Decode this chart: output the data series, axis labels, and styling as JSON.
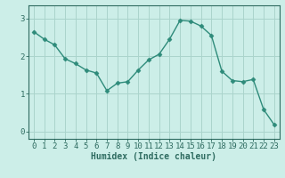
{
  "x": [
    0,
    1,
    2,
    3,
    4,
    5,
    6,
    7,
    8,
    9,
    10,
    11,
    12,
    13,
    14,
    15,
    16,
    17,
    18,
    19,
    20,
    21,
    22,
    23
  ],
  "y": [
    2.65,
    2.45,
    2.3,
    1.93,
    1.8,
    1.63,
    1.55,
    1.08,
    1.28,
    1.32,
    1.63,
    1.9,
    2.05,
    2.45,
    2.95,
    2.93,
    2.8,
    2.55,
    1.6,
    1.35,
    1.32,
    1.38,
    0.58,
    0.18
  ],
  "line_color": "#2e8b7a",
  "marker": "D",
  "marker_size": 2.5,
  "bg_color": "#cceee8",
  "grid_color": "#aad4cc",
  "xlabel": "Humidex (Indice chaleur)",
  "xlim": [
    -0.5,
    23.5
  ],
  "ylim": [
    -0.2,
    3.35
  ],
  "yticks": [
    0,
    1,
    2,
    3
  ],
  "xticks": [
    0,
    1,
    2,
    3,
    4,
    5,
    6,
    7,
    8,
    9,
    10,
    11,
    12,
    13,
    14,
    15,
    16,
    17,
    18,
    19,
    20,
    21,
    22,
    23
  ],
  "tick_color": "#2e6b60",
  "axis_color": "#2e6b60",
  "xlabel_fontsize": 7,
  "tick_fontsize": 6.5
}
